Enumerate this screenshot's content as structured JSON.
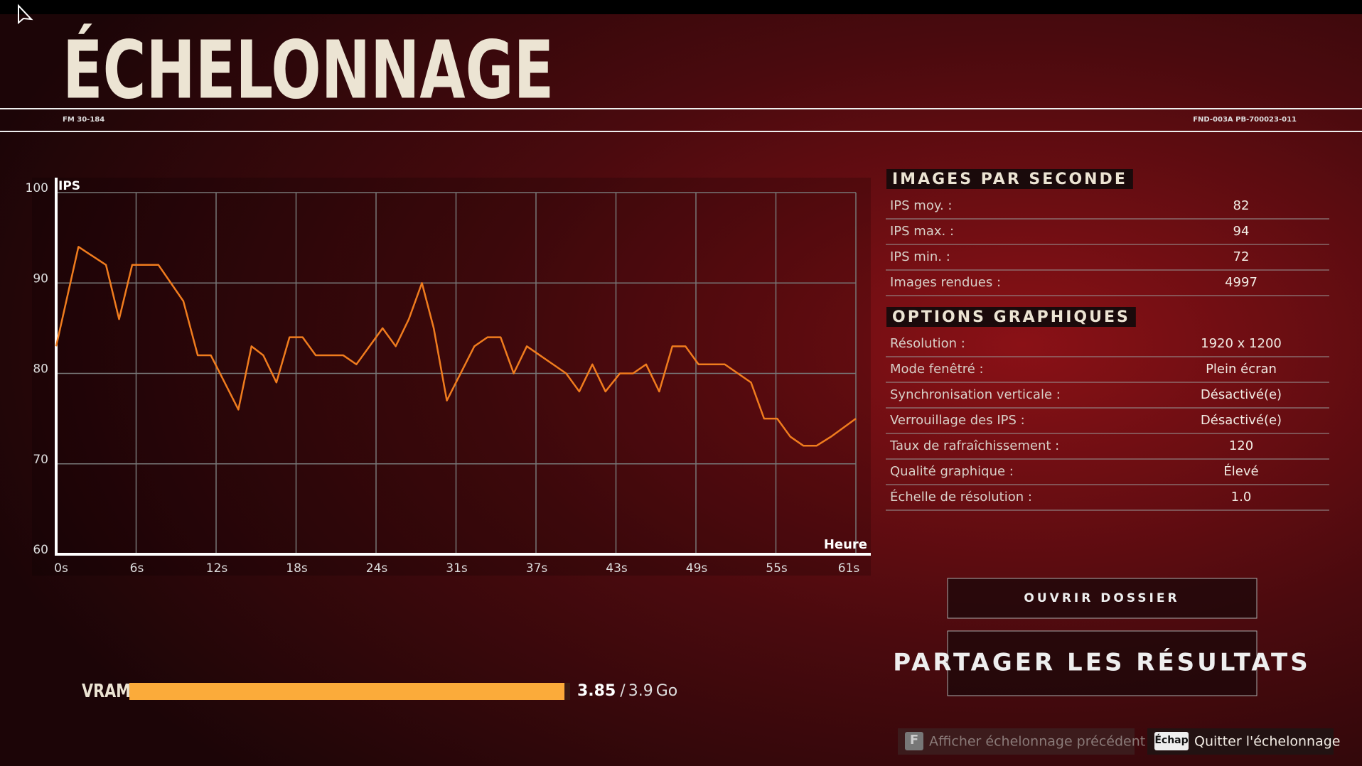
{
  "header": {
    "title": "ÉCHELONNAGE",
    "code_left": "FM 30-184",
    "code_right": "FND-003A PB-700023-011"
  },
  "chart_data": {
    "type": "line",
    "y_label": "IPS",
    "x_label": "Heure",
    "x": [
      0,
      1.7,
      3.8,
      4.8,
      5.8,
      7.8,
      9.7,
      10.8,
      11.8,
      13.9,
      14.9,
      15.8,
      16.8,
      17.8,
      18.8,
      19.8,
      21.9,
      22.9,
      24.9,
      25.9,
      26.9,
      27.9,
      28.8,
      29.8,
      31.9,
      32.9,
      33.9,
      34.9,
      35.9,
      37.9,
      38.9,
      39.9,
      40.9,
      41.9,
      43,
      44,
      45,
      46,
      47,
      48,
      49,
      51,
      53,
      54,
      55,
      56,
      57,
      58,
      59.1,
      61
    ],
    "series": [
      {
        "color": "#f07c1e",
        "values": [
          83,
          94,
          92,
          86,
          92,
          92,
          88,
          82,
          82,
          76,
          83,
          82,
          79,
          84,
          84,
          82,
          82,
          81,
          85,
          83,
          86,
          90,
          85,
          77,
          83,
          84,
          84,
          80,
          83,
          81,
          80,
          78,
          81,
          78,
          80,
          80,
          81,
          78,
          83,
          83,
          81,
          81,
          79,
          75,
          75,
          73,
          72,
          72,
          73,
          75
        ]
      }
    ],
    "xlim": [
      0,
      61
    ],
    "ylim": [
      60,
      100
    ],
    "yticks": [
      60,
      70,
      80,
      90,
      100
    ],
    "xticks": [
      {
        "value": 0,
        "label": "0s"
      },
      {
        "value": 6.1,
        "label": "6s"
      },
      {
        "value": 12.2,
        "label": "12s"
      },
      {
        "value": 18.3,
        "label": "18s"
      },
      {
        "value": 24.4,
        "label": "24s"
      },
      {
        "value": 30.5,
        "label": "31s"
      },
      {
        "value": 36.6,
        "label": "37s"
      },
      {
        "value": 42.7,
        "label": "43s"
      },
      {
        "value": 48.8,
        "label": "49s"
      },
      {
        "value": 54.9,
        "label": "55s"
      },
      {
        "value": 61,
        "label": "61s"
      }
    ],
    "grid": true
  },
  "sections": [
    {
      "title": "IMAGES PAR SECONDE",
      "rows": [
        [
          "IPS moy. :",
          "82"
        ],
        [
          "IPS max. :",
          "94"
        ],
        [
          "IPS min. :",
          "72"
        ],
        [
          "Images rendues :",
          "4997"
        ]
      ]
    },
    {
      "title": "OPTIONS GRAPHIQUES",
      "rows": [
        [
          "Résolution :",
          "1920 x 1200"
        ],
        [
          "Mode fenêtré :",
          "Plein écran"
        ],
        [
          "Synchronisation verticale :",
          "Désactivé(e)"
        ],
        [
          "Verrouillage des IPS :",
          "Désactivé(e)"
        ],
        [
          "Taux de rafraîchissement :",
          "120"
        ],
        [
          "Qualité graphique :",
          "Élevé"
        ],
        [
          "Échelle de résolution :",
          "1.0"
        ]
      ]
    }
  ],
  "buttons": [
    "OUVRIR DOSSIER",
    "PARTAGER LES RÉSULTATS"
  ],
  "vram": {
    "label": "VRAM",
    "used": 3.85,
    "separator": "/",
    "total": 3.9,
    "unit": "Go"
  },
  "footer": [
    {
      "key": "F",
      "label": "Afficher échelonnage précédent"
    },
    {
      "key": "Échap",
      "label": "Quitter l'échelonnage"
    }
  ]
}
